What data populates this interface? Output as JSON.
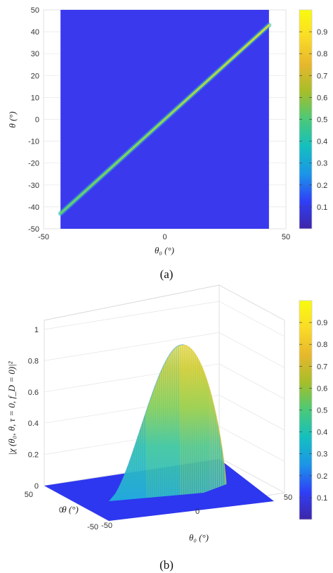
{
  "chart_data": [
    {
      "type": "heatmap",
      "caption": "(a)",
      "xlabel": "θ₀ (°)",
      "ylabel": "θ (°)",
      "xlim": [
        -50,
        50
      ],
      "ylim": [
        -50,
        50
      ],
      "x_ticks": [
        -50,
        0,
        50
      ],
      "y_ticks": [
        50,
        40,
        30,
        20,
        10,
        0,
        -10,
        -20,
        -30,
        -40,
        -50
      ],
      "data_extent": [
        -43,
        43
      ],
      "diagonal": {
        "from": [
          -43,
          -43
        ],
        "to": [
          43,
          43
        ],
        "peak": 1.0
      },
      "background_value": 0.05,
      "colorbar": {
        "ticks": [
          0.1,
          0.2,
          0.3,
          0.4,
          0.5,
          0.6,
          0.7,
          0.8,
          0.9
        ],
        "range": [
          0,
          1
        ]
      },
      "colormap": [
        "#3e26a8",
        "#2f3ff6",
        "#1c95e8",
        "#14bfbf",
        "#4ac979",
        "#a5be2a",
        "#e6b72c",
        "#fadb27",
        "#f9fb0e"
      ],
      "grid": true
    },
    {
      "type": "surface3d",
      "caption": "(b)",
      "xlabel": "θ₀ (°)",
      "ylabel": "θ (°)",
      "zlabel": "|χ (θ₀, θ, τ = 0, f_D = 0)|²",
      "x_ticks": [
        -50,
        0,
        50
      ],
      "y_ticks": [
        50,
        0,
        -50
      ],
      "z_ticks": [
        0,
        0.2,
        0.4,
        0.6,
        0.8,
        1
      ],
      "zlim": [
        0,
        1
      ],
      "peak": 0.95,
      "colorbar": {
        "ticks": [
          0.1,
          0.2,
          0.3,
          0.4,
          0.5,
          0.6,
          0.7,
          0.8,
          0.9
        ],
        "range": [
          0,
          1
        ]
      },
      "grid": true
    }
  ]
}
